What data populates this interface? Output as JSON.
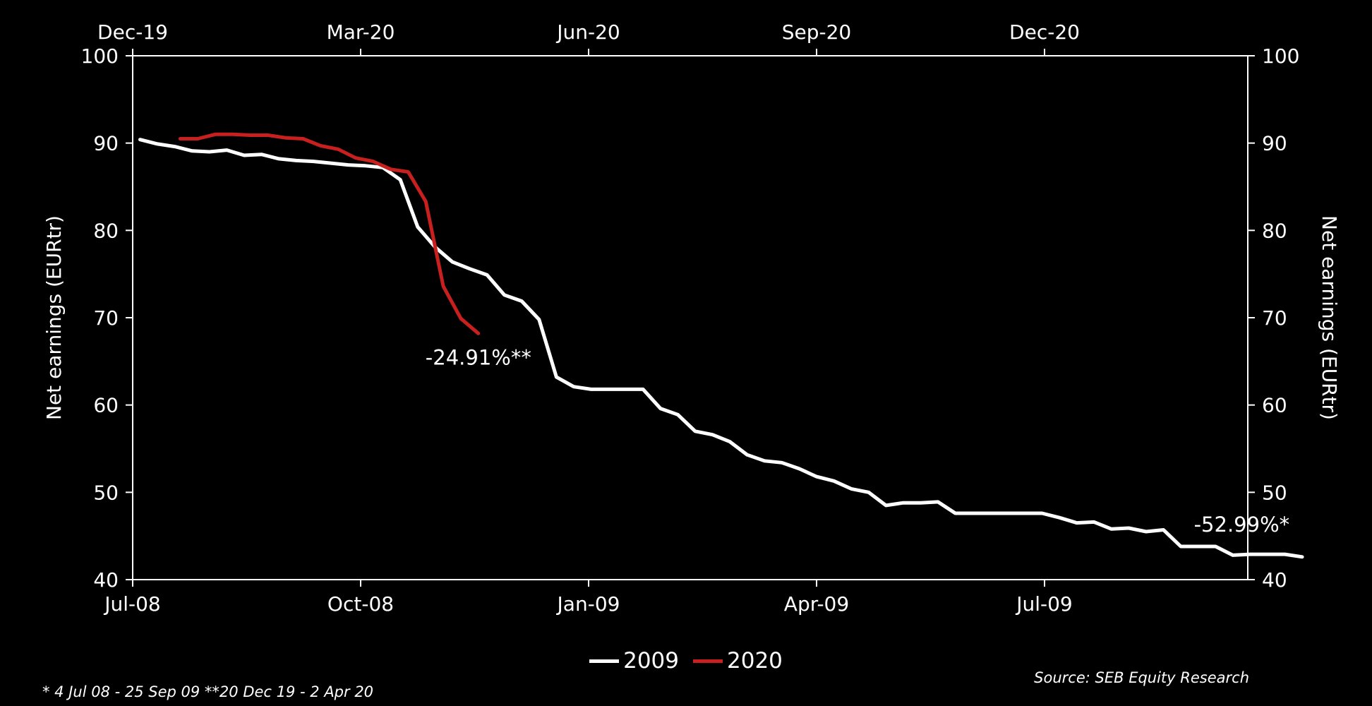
{
  "chart_data": {
    "type": "line",
    "title": "",
    "ylabel_left": "Net earnings (EURtr)",
    "ylabel_right": "Net earnings (EURtr)",
    "ylim": [
      40,
      100
    ],
    "yticks": [
      40,
      50,
      60,
      70,
      80,
      90,
      100
    ],
    "x_bottom_ticks": [
      "Jul-08",
      "Oct-08",
      "Jan-09",
      "Apr-09",
      "Jul-09"
    ],
    "x_top_ticks": [
      "Dec-19",
      "Mar-20",
      "Jun-20",
      "Sep-20",
      "Dec-20"
    ],
    "grid": false,
    "legend_position": "bottom-center",
    "series": [
      {
        "name": "2009",
        "color": "#ffffff",
        "axis": "bottom",
        "x_start": "2008-07-04",
        "step_weeks": 1,
        "values": [
          90.4,
          89.9,
          89.6,
          89.1,
          89.0,
          89.2,
          88.6,
          88.7,
          88.2,
          88.0,
          87.9,
          87.7,
          87.5,
          87.4,
          87.2,
          85.8,
          80.4,
          78.1,
          76.4,
          75.6,
          74.9,
          72.6,
          71.9,
          69.8,
          63.2,
          62.1,
          61.8,
          61.8,
          61.8,
          61.8,
          59.6,
          58.9,
          57.0,
          56.6,
          55.8,
          54.3,
          53.6,
          53.4,
          52.7,
          51.8,
          51.3,
          50.4,
          50.0,
          48.5,
          48.8,
          48.8,
          48.9,
          47.6,
          47.6,
          47.6,
          47.6,
          47.6,
          47.6,
          47.1,
          46.5,
          46.6,
          45.8,
          45.9,
          45.5,
          45.7,
          43.8,
          43.8,
          43.8,
          42.8,
          42.9,
          42.9,
          42.9,
          42.6
        ]
      },
      {
        "name": "2020",
        "color": "#c8201e",
        "axis": "top",
        "x_start": "2019-12-20",
        "step_weeks": 1,
        "values": [
          90.5,
          90.5,
          91.0,
          91.0,
          90.9,
          90.9,
          90.6,
          90.5,
          89.7,
          89.3,
          88.3,
          87.9,
          87.0,
          86.7,
          83.3,
          73.6,
          69.9,
          68.2
        ]
      }
    ],
    "annotations": [
      {
        "text": "-24.91%**",
        "series": "2020"
      },
      {
        "text": "-52.99%*",
        "series": "2009"
      }
    ],
    "footnote": "* 4 Jul 08 - 25 Sep 09  **20 Dec 19 - 2 Apr 20",
    "source": "Source: SEB Equity Research"
  }
}
